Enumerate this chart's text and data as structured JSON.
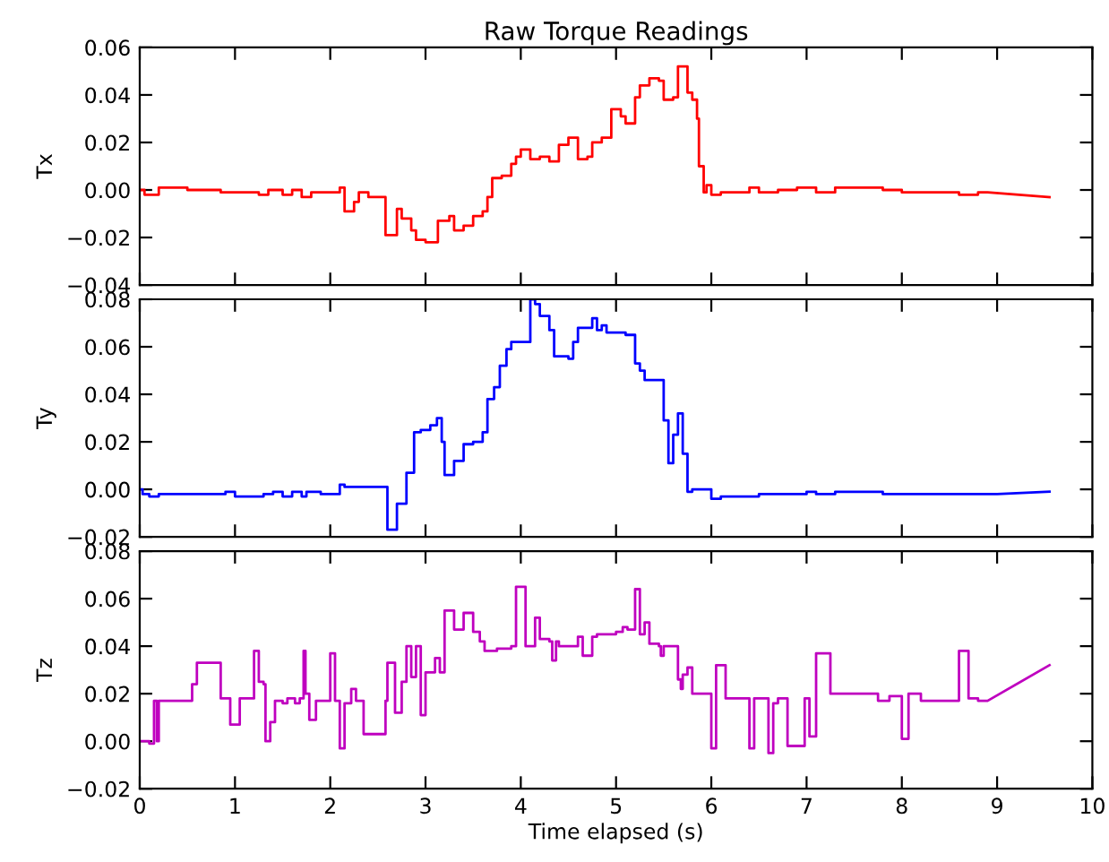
{
  "chart_data": [
    {
      "type": "line",
      "title": "Raw Torque Readings",
      "ylabel": "Tx",
      "tick_labels": "y",
      "grid": false,
      "xlim": [
        0,
        10
      ],
      "xticks": [
        0,
        1,
        2,
        3,
        4,
        5,
        6,
        7,
        8,
        9,
        10
      ],
      "ylim": [
        -0.04,
        0.06
      ],
      "yticks": [
        {
          "value": -0.04,
          "label": "−0.04"
        },
        {
          "value": -0.02,
          "label": "−0.02"
        },
        {
          "value": 0,
          "label": "0.00"
        },
        {
          "value": 0.02,
          "label": "0.02"
        },
        {
          "value": 0.04,
          "label": "0.04"
        },
        {
          "value": 0.06,
          "label": "0.06"
        }
      ],
      "series": [
        {
          "color": "#ff0000",
          "x": [
            0,
            0.05,
            0.05,
            0.2,
            0.2,
            0.5,
            0.5,
            0.85,
            0.85,
            1.25,
            1.25,
            1.35,
            1.35,
            1.5,
            1.5,
            1.6,
            1.6,
            1.7,
            1.7,
            1.8,
            1.8,
            2.1,
            2.1,
            2.15,
            2.15,
            2.25,
            2.25,
            2.3,
            2.3,
            2.4,
            2.4,
            2.58,
            2.58,
            2.7,
            2.7,
            2.75,
            2.75,
            2.85,
            2.85,
            2.9,
            2.9,
            3.0,
            3.0,
            3.13,
            3.13,
            3.25,
            3.25,
            3.3,
            3.3,
            3.4,
            3.4,
            3.5,
            3.5,
            3.6,
            3.6,
            3.65,
            3.65,
            3.7,
            3.7,
            3.8,
            3.8,
            3.9,
            3.9,
            3.95,
            3.95,
            4.0,
            4.0,
            4.1,
            4.1,
            4.2,
            4.2,
            4.3,
            4.3,
            4.4,
            4.4,
            4.5,
            4.5,
            4.6,
            4.6,
            4.7,
            4.7,
            4.75,
            4.75,
            4.85,
            4.85,
            4.95,
            4.95,
            5.05,
            5.05,
            5.1,
            5.1,
            5.2,
            5.2,
            5.25,
            5.25,
            5.35,
            5.35,
            5.45,
            5.45,
            5.5,
            5.5,
            5.6,
            5.6,
            5.65,
            5.65,
            5.75,
            5.75,
            5.8,
            5.8,
            5.85,
            5.85,
            5.87,
            5.87,
            5.92,
            5.92,
            5.95,
            5.95,
            6.0,
            6.0,
            6.1,
            6.1,
            6.4,
            6.4,
            6.5,
            6.5,
            6.7,
            6.7,
            6.9,
            6.9,
            7.1,
            7.1,
            7.3,
            7.3,
            7.8,
            7.8,
            8.0,
            8.0,
            8.6,
            8.6,
            8.8,
            8.8,
            8.9,
            9.55
          ],
          "values": [
            0,
            0,
            -0.002,
            -0.002,
            0.001,
            0.001,
            0,
            0,
            -0.001,
            -0.001,
            -0.002,
            -0.002,
            0,
            0,
            -0.002,
            -0.002,
            0,
            0,
            -0.003,
            -0.003,
            -0.001,
            -0.001,
            0.001,
            0.001,
            -0.009,
            -0.009,
            -0.005,
            -0.005,
            -0.001,
            -0.001,
            -0.003,
            -0.003,
            -0.019,
            -0.019,
            -0.008,
            -0.008,
            -0.012,
            -0.012,
            -0.017,
            -0.017,
            -0.021,
            -0.021,
            -0.022,
            -0.022,
            -0.013,
            -0.013,
            -0.011,
            -0.011,
            -0.017,
            -0.017,
            -0.015,
            -0.015,
            -0.011,
            -0.011,
            -0.009,
            -0.009,
            -0.003,
            -0.003,
            0.005,
            0.005,
            0.006,
            0.006,
            0.011,
            0.011,
            0.014,
            0.014,
            0.017,
            0.017,
            0.013,
            0.013,
            0.014,
            0.014,
            0.012,
            0.012,
            0.019,
            0.019,
            0.022,
            0.022,
            0.013,
            0.013,
            0.014,
            0.014,
            0.02,
            0.02,
            0.022,
            0.022,
            0.034,
            0.034,
            0.031,
            0.031,
            0.028,
            0.028,
            0.039,
            0.039,
            0.044,
            0.044,
            0.047,
            0.047,
            0.046,
            0.046,
            0.038,
            0.038,
            0.039,
            0.039,
            0.052,
            0.052,
            0.041,
            0.041,
            0.038,
            0.038,
            0.03,
            0.03,
            0.01,
            0.01,
            -0.001,
            -0.001,
            0.002,
            0.002,
            -0.002,
            -0.002,
            -0.001,
            -0.001,
            0.001,
            0.001,
            -0.001,
            -0.001,
            0,
            0,
            0.001,
            0.001,
            -0.001,
            -0.001,
            0.001,
            0.001,
            0,
            0,
            -0.001,
            -0.001,
            -0.002,
            -0.002,
            -0.001,
            -0.001,
            -0.003
          ]
        }
      ]
    },
    {
      "type": "line",
      "ylabel": "Ty",
      "tick_labels": "y",
      "grid": false,
      "xlim": [
        0,
        10
      ],
      "xticks": [
        0,
        1,
        2,
        3,
        4,
        5,
        6,
        7,
        8,
        9,
        10
      ],
      "ylim": [
        -0.02,
        0.08
      ],
      "yticks": [
        {
          "value": -0.02,
          "label": "−0.02"
        },
        {
          "value": 0,
          "label": "0.00"
        },
        {
          "value": 0.02,
          "label": "0.02"
        },
        {
          "value": 0.04,
          "label": "0.04"
        },
        {
          "value": 0.06,
          "label": "0.06"
        },
        {
          "value": 0.08,
          "label": "0.08"
        }
      ],
      "series": [
        {
          "color": "#0000ff",
          "x": [
            0,
            0.03,
            0.03,
            0.1,
            0.1,
            0.2,
            0.2,
            0.9,
            0.9,
            1.0,
            1.0,
            1.3,
            1.3,
            1.4,
            1.4,
            1.5,
            1.5,
            1.6,
            1.6,
            1.7,
            1.7,
            1.75,
            1.75,
            1.9,
            1.9,
            2.1,
            2.1,
            2.15,
            2.15,
            2.6,
            2.6,
            2.7,
            2.7,
            2.8,
            2.8,
            2.88,
            2.88,
            2.95,
            2.95,
            3.05,
            3.05,
            3.12,
            3.12,
            3.17,
            3.17,
            3.2,
            3.2,
            3.3,
            3.3,
            3.4,
            3.4,
            3.5,
            3.5,
            3.6,
            3.6,
            3.65,
            3.65,
            3.72,
            3.72,
            3.78,
            3.78,
            3.85,
            3.85,
            3.9,
            3.9,
            4.1,
            4.1,
            4.15,
            4.15,
            4.2,
            4.2,
            4.3,
            4.3,
            4.35,
            4.35,
            4.5,
            4.5,
            4.55,
            4.55,
            4.6,
            4.6,
            4.75,
            4.75,
            4.8,
            4.8,
            4.85,
            4.85,
            4.9,
            4.9,
            5.1,
            5.1,
            5.2,
            5.2,
            5.25,
            5.25,
            5.3,
            5.3,
            5.5,
            5.5,
            5.55,
            5.55,
            5.6,
            5.6,
            5.65,
            5.65,
            5.7,
            5.7,
            5.75,
            5.75,
            5.8,
            5.8,
            6.0,
            6.0,
            6.1,
            6.1,
            6.5,
            6.5,
            7.0,
            7.0,
            7.1,
            7.1,
            7.3,
            7.3,
            7.8,
            7.8,
            9.0,
            9.55
          ],
          "values": [
            0,
            0,
            -0.002,
            -0.002,
            -0.003,
            -0.003,
            -0.002,
            -0.002,
            -0.001,
            -0.001,
            -0.003,
            -0.003,
            -0.002,
            -0.002,
            -0.001,
            -0.001,
            -0.003,
            -0.003,
            -0.001,
            -0.001,
            -0.003,
            -0.003,
            -0.001,
            -0.001,
            -0.002,
            -0.002,
            0.002,
            0.002,
            0.001,
            0.001,
            -0.017,
            -0.017,
            -0.006,
            -0.006,
            0.007,
            0.007,
            0.024,
            0.024,
            0.025,
            0.025,
            0.027,
            0.027,
            0.03,
            0.03,
            0.02,
            0.02,
            0.006,
            0.006,
            0.012,
            0.012,
            0.019,
            0.019,
            0.02,
            0.02,
            0.024,
            0.024,
            0.038,
            0.038,
            0.043,
            0.043,
            0.052,
            0.052,
            0.059,
            0.059,
            0.062,
            0.062,
            0.08,
            0.08,
            0.078,
            0.078,
            0.073,
            0.073,
            0.067,
            0.067,
            0.056,
            0.056,
            0.055,
            0.055,
            0.062,
            0.062,
            0.068,
            0.068,
            0.072,
            0.072,
            0.067,
            0.067,
            0.069,
            0.069,
            0.066,
            0.066,
            0.065,
            0.065,
            0.053,
            0.053,
            0.05,
            0.05,
            0.046,
            0.046,
            0.029,
            0.029,
            0.011,
            0.011,
            0.023,
            0.023,
            0.032,
            0.032,
            0.015,
            0.015,
            -0.001,
            -0.001,
            0,
            0,
            -0.004,
            -0.004,
            -0.003,
            -0.003,
            -0.002,
            -0.002,
            -0.001,
            -0.001,
            -0.002,
            -0.002,
            -0.001,
            -0.001,
            -0.002,
            -0.002,
            -0.001
          ]
        }
      ]
    },
    {
      "type": "line",
      "ylabel": "Tz",
      "xlabel": "Time elapsed (s)",
      "grid": false,
      "xlim": [
        0,
        10
      ],
      "xticks": [
        0,
        1,
        2,
        3,
        4,
        5,
        6,
        7,
        8,
        9,
        10
      ],
      "ylim": [
        -0.02,
        0.08
      ],
      "yticks": [
        {
          "value": -0.02,
          "label": "−0.02"
        },
        {
          "value": 0,
          "label": "0.00"
        },
        {
          "value": 0.02,
          "label": "0.02"
        },
        {
          "value": 0.04,
          "label": "0.04"
        },
        {
          "value": 0.06,
          "label": "0.06"
        },
        {
          "value": 0.08,
          "label": "0.08"
        }
      ],
      "series": [
        {
          "color": "#bf00bf",
          "x": [
            0,
            0.1,
            0.1,
            0.15,
            0.15,
            0.18,
            0.18,
            0.2,
            0.2,
            0.55,
            0.55,
            0.6,
            0.6,
            0.85,
            0.85,
            0.95,
            0.95,
            1.05,
            1.05,
            1.2,
            1.2,
            1.25,
            1.25,
            1.3,
            1.3,
            1.32,
            1.32,
            1.37,
            1.37,
            1.42,
            1.42,
            1.5,
            1.5,
            1.55,
            1.55,
            1.63,
            1.63,
            1.68,
            1.68,
            1.72,
            1.72,
            1.74,
            1.74,
            1.78,
            1.78,
            1.85,
            1.85,
            2.0,
            2.0,
            2.05,
            2.05,
            2.1,
            2.1,
            2.15,
            2.15,
            2.22,
            2.22,
            2.27,
            2.27,
            2.35,
            2.35,
            2.58,
            2.58,
            2.6,
            2.6,
            2.68,
            2.68,
            2.75,
            2.75,
            2.8,
            2.8,
            2.85,
            2.85,
            2.9,
            2.9,
            2.95,
            2.95,
            3.0,
            3.0,
            3.1,
            3.1,
            3.15,
            3.15,
            3.2,
            3.2,
            3.3,
            3.3,
            3.4,
            3.4,
            3.5,
            3.5,
            3.57,
            3.57,
            3.62,
            3.62,
            3.75,
            3.75,
            3.9,
            3.9,
            3.95,
            3.95,
            4.05,
            4.05,
            4.15,
            4.15,
            4.2,
            4.2,
            4.3,
            4.3,
            4.33,
            4.33,
            4.37,
            4.37,
            4.4,
            4.4,
            4.6,
            4.6,
            4.65,
            4.65,
            4.75,
            4.75,
            4.8,
            4.8,
            5.0,
            5.0,
            5.07,
            5.07,
            5.12,
            5.12,
            5.2,
            5.2,
            5.25,
            5.25,
            5.3,
            5.3,
            5.35,
            5.35,
            5.45,
            5.45,
            5.47,
            5.47,
            5.5,
            5.5,
            5.65,
            5.65,
            5.68,
            5.68,
            5.7,
            5.7,
            5.75,
            5.75,
            5.8,
            5.8,
            6.0,
            6.0,
            6.05,
            6.05,
            6.15,
            6.15,
            6.4,
            6.4,
            6.45,
            6.45,
            6.6,
            6.6,
            6.65,
            6.65,
            6.7,
            6.7,
            6.8,
            6.8,
            6.98,
            6.98,
            7.03,
            7.03,
            7.1,
            7.1,
            7.25,
            7.25,
            7.75,
            7.75,
            7.87,
            7.87,
            8.0,
            8.0,
            8.07,
            8.07,
            8.2,
            8.2,
            8.6,
            8.6,
            8.7,
            8.7,
            8.8,
            8.8,
            8.9,
            9.55
          ],
          "values": [
            0,
            0,
            -0.001,
            -0.001,
            0.017,
            0.017,
            0,
            0,
            0.017,
            0.017,
            0.024,
            0.024,
            0.033,
            0.033,
            0.018,
            0.018,
            0.007,
            0.007,
            0.018,
            0.018,
            0.038,
            0.038,
            0.025,
            0.025,
            0.024,
            0.024,
            0,
            0,
            0.008,
            0.008,
            0.017,
            0.017,
            0.016,
            0.016,
            0.018,
            0.018,
            0.016,
            0.016,
            0.018,
            0.018,
            0.038,
            0.038,
            0.02,
            0.02,
            0.009,
            0.009,
            0.017,
            0.017,
            0.037,
            0.037,
            0.017,
            0.017,
            -0.003,
            -0.003,
            0.016,
            0.016,
            0.022,
            0.022,
            0.017,
            0.017,
            0.003,
            0.003,
            0.017,
            0.017,
            0.033,
            0.033,
            0.012,
            0.012,
            0.025,
            0.025,
            0.04,
            0.04,
            0.027,
            0.027,
            0.04,
            0.04,
            0.011,
            0.011,
            0.029,
            0.029,
            0.035,
            0.035,
            0.029,
            0.029,
            0.055,
            0.055,
            0.047,
            0.047,
            0.054,
            0.054,
            0.046,
            0.046,
            0.042,
            0.042,
            0.038,
            0.038,
            0.039,
            0.039,
            0.04,
            0.04,
            0.065,
            0.065,
            0.04,
            0.04,
            0.052,
            0.052,
            0.043,
            0.043,
            0.042,
            0.042,
            0.034,
            0.034,
            0.042,
            0.042,
            0.04,
            0.04,
            0.044,
            0.044,
            0.036,
            0.036,
            0.044,
            0.044,
            0.045,
            0.045,
            0.046,
            0.046,
            0.048,
            0.048,
            0.047,
            0.047,
            0.064,
            0.064,
            0.045,
            0.045,
            0.05,
            0.05,
            0.041,
            0.041,
            0.04,
            0.04,
            0.036,
            0.036,
            0.04,
            0.04,
            0.026,
            0.026,
            0.022,
            0.022,
            0.028,
            0.028,
            0.031,
            0.031,
            0.02,
            0.02,
            -0.003,
            -0.003,
            0.032,
            0.032,
            0.018,
            0.018,
            -0.003,
            -0.003,
            0.018,
            0.018,
            -0.005,
            -0.005,
            0.016,
            0.016,
            0.018,
            0.018,
            -0.002,
            -0.002,
            0.018,
            0.018,
            0.002,
            0.002,
            0.037,
            0.037,
            0.02,
            0.02,
            0.017,
            0.017,
            0.019,
            0.019,
            0.001,
            0.001,
            0.02,
            0.02,
            0.017,
            0.017,
            0.038,
            0.038,
            0.018,
            0.018,
            0.017,
            0.017,
            0.032
          ]
        }
      ]
    }
  ]
}
